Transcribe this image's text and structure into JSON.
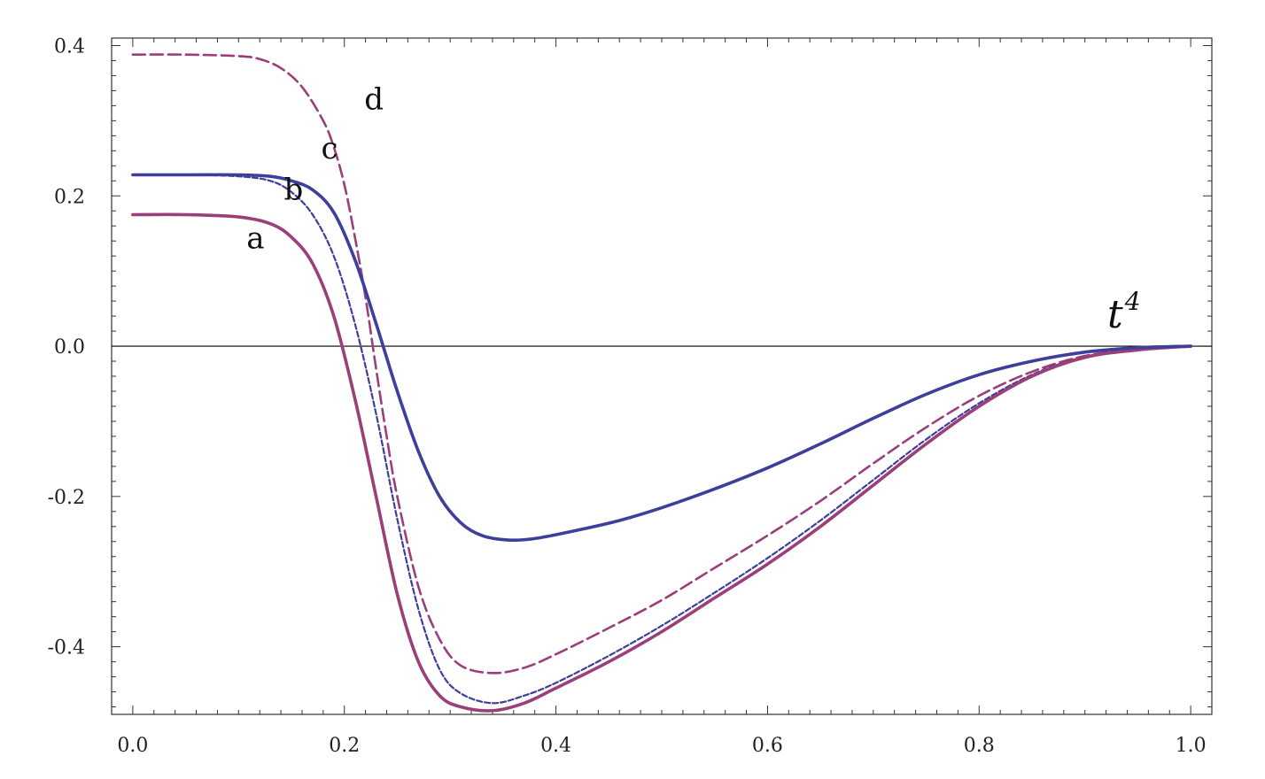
{
  "chart_data": {
    "type": "line",
    "title": "",
    "xlabel": "",
    "ylabel": "",
    "annotation": {
      "base": "t",
      "sup": "4"
    },
    "xlim": [
      -0.02,
      1.02
    ],
    "ylim": [
      -0.49,
      0.41
    ],
    "x_ticks": [
      0.0,
      0.2,
      0.4,
      0.6,
      0.8,
      1.0
    ],
    "x_tick_labels": [
      "0.0",
      "0.2",
      "0.4",
      "0.6",
      "0.8",
      "1.0"
    ],
    "y_ticks": [
      0.4,
      0.2,
      0.0,
      -0.2,
      -0.4
    ],
    "y_tick_labels": [
      "0.4",
      "0.2",
      "0.0",
      "-0.2",
      "-0.4"
    ],
    "grid": false,
    "legend": "none",
    "series": [
      {
        "label": "a",
        "color": "#9b3f7a",
        "style": "solid",
        "points": [
          [
            0.0,
            0.175
          ],
          [
            0.05,
            0.175
          ],
          [
            0.1,
            0.172
          ],
          [
            0.13,
            0.163
          ],
          [
            0.15,
            0.145
          ],
          [
            0.17,
            0.11
          ],
          [
            0.19,
            0.04
          ],
          [
            0.21,
            -0.07
          ],
          [
            0.23,
            -0.2
          ],
          [
            0.25,
            -0.33
          ],
          [
            0.27,
            -0.42
          ],
          [
            0.29,
            -0.465
          ],
          [
            0.31,
            -0.48
          ],
          [
            0.34,
            -0.485
          ],
          [
            0.37,
            -0.475
          ],
          [
            0.4,
            -0.455
          ],
          [
            0.45,
            -0.42
          ],
          [
            0.5,
            -0.38
          ],
          [
            0.55,
            -0.335
          ],
          [
            0.6,
            -0.29
          ],
          [
            0.65,
            -0.24
          ],
          [
            0.7,
            -0.185
          ],
          [
            0.75,
            -0.13
          ],
          [
            0.8,
            -0.08
          ],
          [
            0.85,
            -0.04
          ],
          [
            0.9,
            -0.015
          ],
          [
            0.95,
            -0.005
          ],
          [
            1.0,
            0.0
          ]
        ]
      },
      {
        "label": "b",
        "color": "#3d3f9a",
        "style": "dotted",
        "points": [
          [
            0.0,
            0.228
          ],
          [
            0.05,
            0.228
          ],
          [
            0.1,
            0.226
          ],
          [
            0.13,
            0.22
          ],
          [
            0.15,
            0.205
          ],
          [
            0.17,
            0.175
          ],
          [
            0.19,
            0.12
          ],
          [
            0.21,
            0.03
          ],
          [
            0.23,
            -0.09
          ],
          [
            0.25,
            -0.23
          ],
          [
            0.27,
            -0.35
          ],
          [
            0.29,
            -0.43
          ],
          [
            0.31,
            -0.462
          ],
          [
            0.34,
            -0.475
          ],
          [
            0.37,
            -0.465
          ],
          [
            0.4,
            -0.448
          ],
          [
            0.45,
            -0.412
          ],
          [
            0.5,
            -0.372
          ],
          [
            0.55,
            -0.328
          ],
          [
            0.6,
            -0.282
          ],
          [
            0.65,
            -0.232
          ],
          [
            0.7,
            -0.178
          ],
          [
            0.75,
            -0.124
          ],
          [
            0.8,
            -0.076
          ],
          [
            0.85,
            -0.038
          ],
          [
            0.9,
            -0.014
          ],
          [
            0.95,
            -0.004
          ],
          [
            1.0,
            0.0
          ]
        ]
      },
      {
        "label": "c",
        "color": "#3d3f9a",
        "style": "solid",
        "points": [
          [
            0.0,
            0.228
          ],
          [
            0.05,
            0.228
          ],
          [
            0.1,
            0.228
          ],
          [
            0.13,
            0.226
          ],
          [
            0.15,
            0.22
          ],
          [
            0.17,
            0.208
          ],
          [
            0.19,
            0.178
          ],
          [
            0.21,
            0.115
          ],
          [
            0.23,
            0.03
          ],
          [
            0.25,
            -0.06
          ],
          [
            0.27,
            -0.14
          ],
          [
            0.29,
            -0.2
          ],
          [
            0.31,
            -0.235
          ],
          [
            0.33,
            -0.252
          ],
          [
            0.355,
            -0.258
          ],
          [
            0.38,
            -0.256
          ],
          [
            0.42,
            -0.245
          ],
          [
            0.46,
            -0.232
          ],
          [
            0.5,
            -0.215
          ],
          [
            0.55,
            -0.19
          ],
          [
            0.6,
            -0.162
          ],
          [
            0.65,
            -0.13
          ],
          [
            0.7,
            -0.096
          ],
          [
            0.75,
            -0.064
          ],
          [
            0.8,
            -0.038
          ],
          [
            0.85,
            -0.02
          ],
          [
            0.9,
            -0.008
          ],
          [
            0.95,
            -0.002
          ],
          [
            1.0,
            0.0
          ]
        ]
      },
      {
        "label": "d",
        "color": "#9b3f7a",
        "style": "dashed",
        "points": [
          [
            0.0,
            0.388
          ],
          [
            0.05,
            0.388
          ],
          [
            0.1,
            0.386
          ],
          [
            0.12,
            0.382
          ],
          [
            0.14,
            0.37
          ],
          [
            0.16,
            0.345
          ],
          [
            0.18,
            0.3
          ],
          [
            0.19,
            0.265
          ],
          [
            0.2,
            0.215
          ],
          [
            0.21,
            0.145
          ],
          [
            0.22,
            0.065
          ],
          [
            0.23,
            -0.03
          ],
          [
            0.24,
            -0.12
          ],
          [
            0.25,
            -0.2
          ],
          [
            0.27,
            -0.32
          ],
          [
            0.29,
            -0.39
          ],
          [
            0.31,
            -0.425
          ],
          [
            0.34,
            -0.435
          ],
          [
            0.37,
            -0.428
          ],
          [
            0.4,
            -0.41
          ],
          [
            0.45,
            -0.375
          ],
          [
            0.5,
            -0.338
          ],
          [
            0.55,
            -0.295
          ],
          [
            0.6,
            -0.252
          ],
          [
            0.65,
            -0.206
          ],
          [
            0.7,
            -0.156
          ],
          [
            0.75,
            -0.108
          ],
          [
            0.8,
            -0.066
          ],
          [
            0.85,
            -0.034
          ],
          [
            0.9,
            -0.013
          ],
          [
            0.95,
            -0.004
          ],
          [
            1.0,
            0.0
          ]
        ]
      }
    ]
  }
}
